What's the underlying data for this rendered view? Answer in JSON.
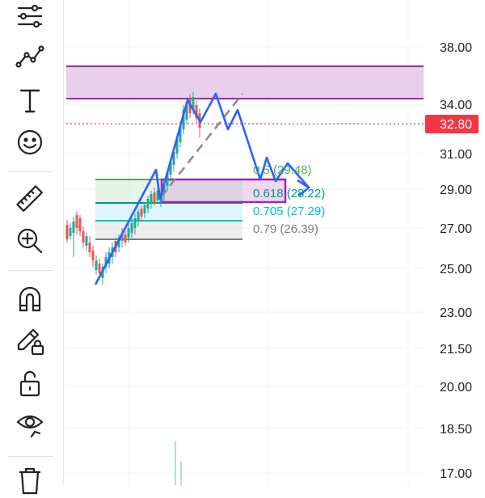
{
  "toolbar": {
    "tools": [
      {
        "name": "settings-sliders-icon"
      },
      {
        "name": "trend-line-icon"
      },
      {
        "name": "text-tool-icon"
      },
      {
        "name": "emoji-icon"
      },
      {
        "name": "ruler-icon"
      },
      {
        "name": "zoom-in-icon"
      },
      {
        "name": "magnet-icon"
      },
      {
        "name": "pencil-lock-icon"
      },
      {
        "name": "unlock-icon"
      },
      {
        "name": "eye-icon"
      },
      {
        "name": "trash-icon"
      }
    ]
  },
  "price_axis": {
    "ticks": [
      "38.00",
      "34.00",
      "32.80",
      "31.00",
      "29.00",
      "27.00",
      "25.00",
      "23.00",
      "21.50",
      "20.00",
      "18.50",
      "17.00"
    ],
    "current_price": "32.80"
  },
  "fib_levels": [
    {
      "label": "0.5 (29.48)",
      "ratio": "0.5",
      "price": 29.48,
      "color": "#4caf50"
    },
    {
      "label": "0.618 (28.22)",
      "ratio": "0.618",
      "price": 28.22,
      "color": "#009688"
    },
    {
      "label": "0.705 (27.29)",
      "ratio": "0.705",
      "price": 27.29,
      "color": "#00bcd4"
    },
    {
      "label": "0.79 (26.39)",
      "ratio": "0.79",
      "price": 26.39,
      "color": "#787b86"
    }
  ],
  "colors": {
    "up": "#26a69a",
    "down": "#ef5350",
    "price_tag": "#f23645",
    "zone_purple": "#9c27b0",
    "path_blue": "#2962ff"
  }
}
